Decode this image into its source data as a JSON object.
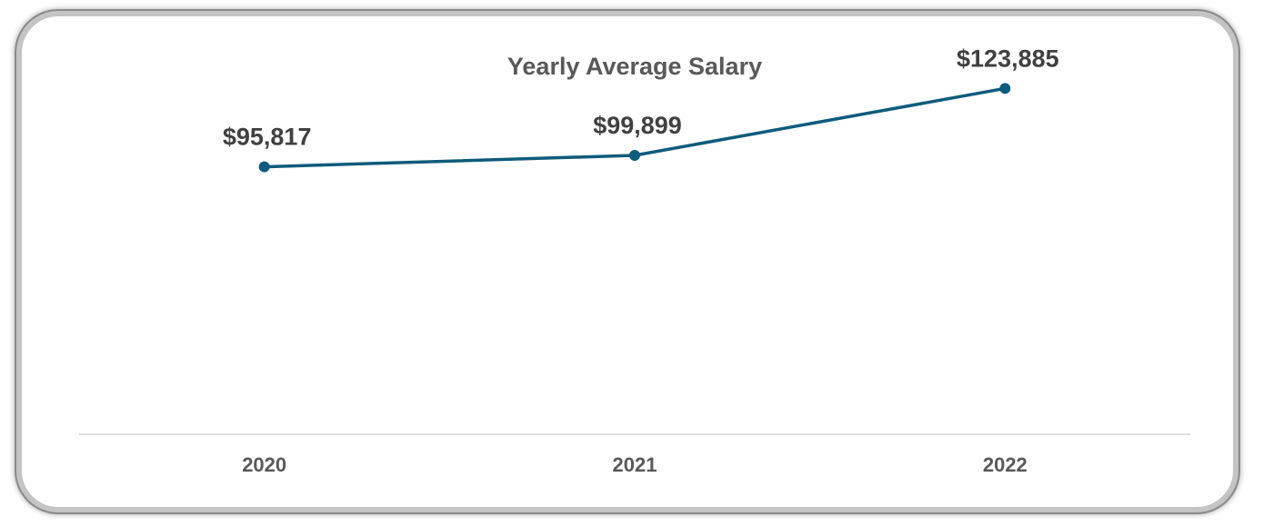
{
  "chart_data": {
    "type": "line",
    "title": "Yearly Average Salary",
    "categories": [
      "2020",
      "2021",
      "2022"
    ],
    "series": [
      {
        "values": [
          95817,
          99899,
          123885
        ],
        "labels": [
          "$95,817",
          "$99,899",
          "$123,885"
        ],
        "color": "#0f5b7c"
      }
    ],
    "xlabel": "",
    "ylabel": "",
    "ylim": [
      0,
      140000
    ],
    "grid": false,
    "legend": "none",
    "axis_color": "#d9d9d9"
  }
}
